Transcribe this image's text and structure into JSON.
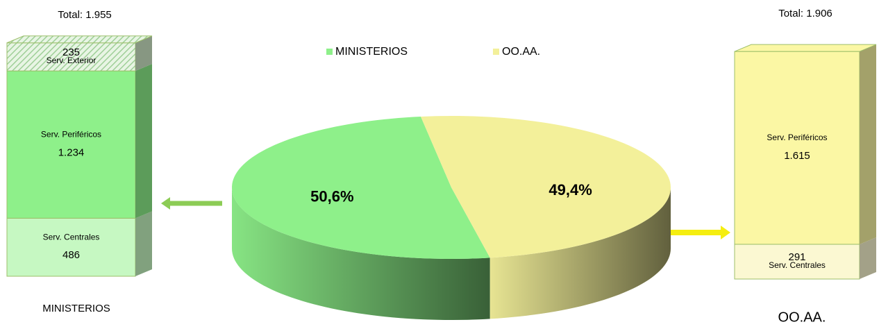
{
  "chart_data": [
    {
      "type": "stacked-bar",
      "title": "Total: 1.955",
      "category": "MINISTERIOS",
      "series": [
        {
          "name": "Serv. Centrales",
          "color": "#c6f8c2",
          "values": [
            486
          ]
        },
        {
          "name": "Serv. Periféricos",
          "color": "#8ef08a",
          "values": [
            1234
          ],
          "value_labels": [
            "1.234"
          ]
        },
        {
          "name": "Serv. Exterior",
          "color": "#cfe8c8",
          "hatch": true,
          "values": [
            235
          ]
        }
      ]
    },
    {
      "type": "pie",
      "categories": [
        "MINISTERIOS",
        "OO.AA."
      ],
      "values": [
        50.6,
        49.4
      ],
      "value_labels": [
        "50,6%",
        "49,4%"
      ],
      "colors": [
        "#8ef08a",
        "#f3f09a"
      ],
      "legend": "top"
    },
    {
      "type": "stacked-bar",
      "title": "Total: 1.906",
      "category": "OO.AA.",
      "series": [
        {
          "name": "Serv. Centrales",
          "color": "#fbf8d2",
          "values": [
            291
          ]
        },
        {
          "name": "Serv. Periféricos",
          "color": "#fbf7a4",
          "values": [
            1615
          ],
          "value_labels": [
            "1.615"
          ]
        }
      ]
    }
  ]
}
